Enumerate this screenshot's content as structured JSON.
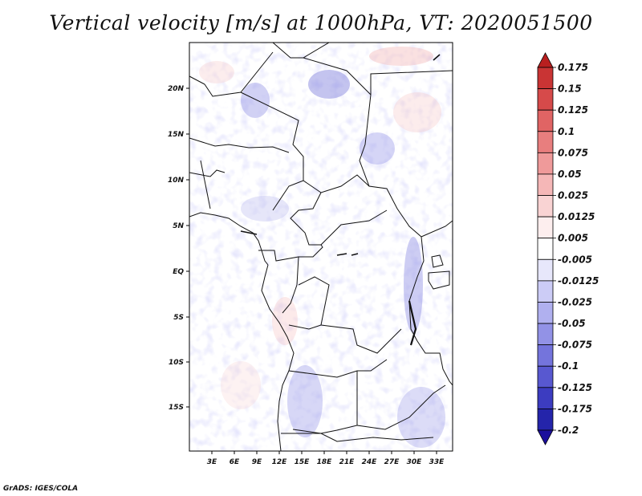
{
  "title": "Vertical velocity [m/s] at 1000hPa, VT: 2020051500",
  "footer": "GrADS: IGES/COLA",
  "map": {
    "lon_labels": [
      "3E",
      "6E",
      "9E",
      "12E",
      "15E",
      "18E",
      "21E",
      "24E",
      "27E",
      "30E",
      "33E"
    ],
    "lat_labels": [
      "20N",
      "15N",
      "10N",
      "5N",
      "EQ",
      "5S",
      "10S",
      "15S"
    ]
  },
  "colorbar": {
    "levels": [
      "0.175",
      "0.15",
      "0.125",
      "0.1",
      "0.075",
      "0.05",
      "0.025",
      "0.0125",
      "0.005",
      "-0.005",
      "-0.0125",
      "-0.025",
      "-0.05",
      "-0.075",
      "-0.1",
      "-0.125",
      "-0.175",
      "-0.2"
    ],
    "top_color": "#a50f15",
    "bottom_color": "#1c0f9c",
    "colors": [
      "#b81f1f",
      "#c93434",
      "#d64a4a",
      "#e06464",
      "#e87e7e",
      "#ef9a9a",
      "#f5b7b7",
      "#f9d3d3",
      "#fdeeee",
      "#ffffff",
      "#e7e7fb",
      "#ccccf6",
      "#b0b0ef",
      "#9292e6",
      "#7474dc",
      "#5858d0",
      "#3c3cc0",
      "#2424aa",
      "#1c0f9c"
    ]
  }
}
